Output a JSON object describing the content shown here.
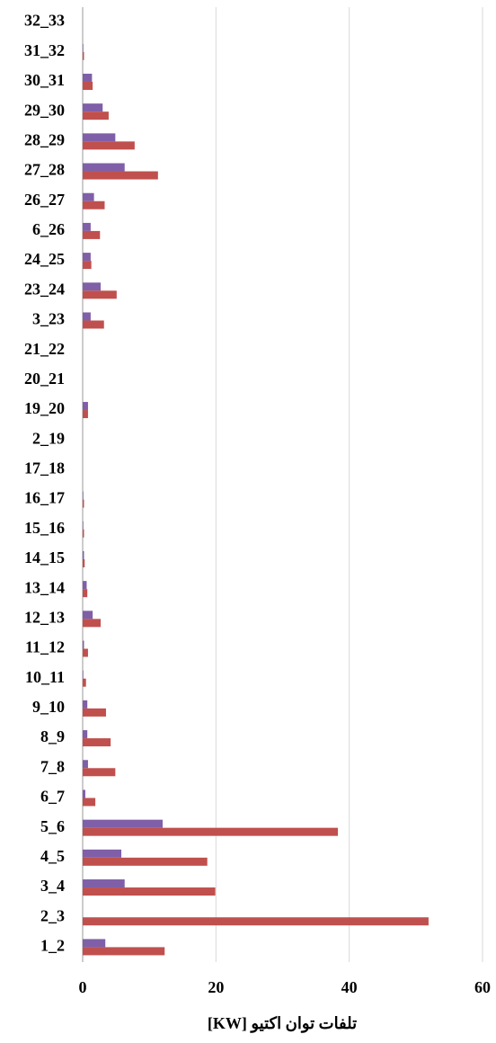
{
  "chart_data": {
    "type": "barh",
    "x_label": "تلفات توان اکتیو [KW]",
    "categories": [
      "1_2",
      "2_3",
      "3_4",
      "4_5",
      "5_6",
      "6_7",
      "7_8",
      "8_9",
      "9_10",
      "10_11",
      "11_12",
      "12_13",
      "13_14",
      "14_15",
      "15_16",
      "16_17",
      "17_18",
      "2_19",
      "19_20",
      "20_21",
      "21_22",
      "3_23",
      "23_24",
      "24_25",
      "6_26",
      "26_27",
      "27_28",
      "28_29",
      "29_30",
      "30_31",
      "31_32",
      "32_33"
    ],
    "series": [
      {
        "color": "#7f5fa8",
        "values": [
          3.4,
          0,
          6.3,
          5.8,
          12.0,
          0.4,
          0.8,
          0.7,
          0.7,
          0.1,
          0.2,
          1.5,
          0.6,
          0.2,
          0.1,
          0.1,
          0,
          0,
          0.8,
          0,
          0,
          1.2,
          2.7,
          1.2,
          1.2,
          1.7,
          6.3,
          4.9,
          3.0,
          1.4,
          0.1,
          0
        ]
      },
      {
        "color": "#c0504d",
        "values": [
          12.3,
          51.9,
          19.9,
          18.7,
          38.3,
          1.9,
          4.9,
          4.2,
          3.5,
          0.5,
          0.8,
          2.7,
          0.7,
          0.3,
          0.2,
          0.2,
          0,
          0,
          0.8,
          0,
          0,
          3.2,
          5.1,
          1.3,
          2.6,
          3.3,
          11.3,
          7.8,
          3.9,
          1.5,
          0.2,
          0
        ]
      }
    ],
    "xlim": [
      0,
      60
    ],
    "xticks": [
      0,
      20,
      40,
      60
    ],
    "grid": true
  }
}
